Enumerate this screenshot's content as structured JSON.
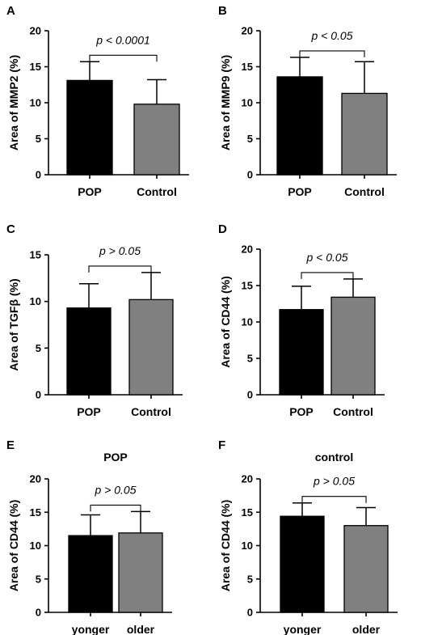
{
  "chart_data": [
    {
      "type": "bar",
      "panel": "A",
      "title": "",
      "ylabel": "Area of MMP2 (%)",
      "categories": [
        "POP",
        "Control"
      ],
      "values": [
        13.1,
        9.8
      ],
      "errors": [
        2.6,
        3.4
      ],
      "colors": [
        "#000000",
        "#808080"
      ],
      "ylim": [
        0,
        20
      ],
      "yticks": [
        0,
        5,
        10,
        15,
        20
      ],
      "ytick_labels": [
        "0",
        "5",
        "10",
        "15",
        "20"
      ],
      "annotation": "p < 0.0001"
    },
    {
      "type": "bar",
      "panel": "B",
      "title": "",
      "ylabel": "Area of MMP9 (%)",
      "categories": [
        "POP",
        "Control"
      ],
      "values": [
        13.6,
        11.3
      ],
      "errors": [
        2.7,
        4.4
      ],
      "colors": [
        "#000000",
        "#808080"
      ],
      "ylim": [
        0,
        20
      ],
      "yticks": [
        0,
        5,
        10,
        15,
        20
      ],
      "ytick_labels": [
        "0",
        "5",
        "10",
        "15",
        "20"
      ],
      "annotation": "p < 0.05"
    },
    {
      "type": "bar",
      "panel": "C",
      "title": "",
      "ylabel": "Area of TGFβ (%)",
      "categories": [
        "POP",
        "Control"
      ],
      "values": [
        9.3,
        10.2
      ],
      "errors": [
        2.6,
        2.9
      ],
      "colors": [
        "#000000",
        "#808080"
      ],
      "ylim": [
        0,
        15
      ],
      "yticks": [
        0,
        5,
        10,
        15
      ],
      "ytick_labels": [
        "0",
        "5",
        "10",
        "15"
      ],
      "annotation": "p > 0.05"
    },
    {
      "type": "bar",
      "panel": "D",
      "title": "",
      "ylabel": "Area of CD44 (%)",
      "categories": [
        "POP",
        "Control"
      ],
      "values": [
        11.7,
        13.4
      ],
      "errors": [
        3.2,
        2.5
      ],
      "colors": [
        "#000000",
        "#808080"
      ],
      "ylim": [
        0,
        20
      ],
      "yticks": [
        0,
        5,
        10,
        15,
        20
      ],
      "ytick_labels": [
        "0",
        "5",
        "10",
        "15",
        "20"
      ],
      "annotation": "p < 0.05"
    },
    {
      "type": "bar",
      "panel": "E",
      "title": "POP",
      "ylabel": "Area of CD44 (%)",
      "categories": [
        "yonger",
        "older"
      ],
      "values": [
        11.5,
        11.9
      ],
      "errors": [
        3.1,
        3.2
      ],
      "colors": [
        "#000000",
        "#808080"
      ],
      "ylim": [
        0,
        20
      ],
      "yticks": [
        0,
        5,
        10,
        15,
        20
      ],
      "ytick_labels": [
        "0",
        "5",
        "10",
        "15",
        "20"
      ],
      "annotation": "p > 0.05"
    },
    {
      "type": "bar",
      "panel": "F",
      "title": "control",
      "ylabel": "Area of CD44 (%)",
      "categories": [
        "yonger",
        "older"
      ],
      "values": [
        14.4,
        13.0
      ],
      "errors": [
        2.0,
        2.7
      ],
      "colors": [
        "#000000",
        "#808080"
      ],
      "ylim": [
        0,
        20
      ],
      "yticks": [
        0,
        5,
        10,
        15,
        20
      ],
      "ytick_labels": [
        "0",
        "5",
        "10",
        "15",
        "20"
      ],
      "annotation": "p > 0.05"
    }
  ]
}
